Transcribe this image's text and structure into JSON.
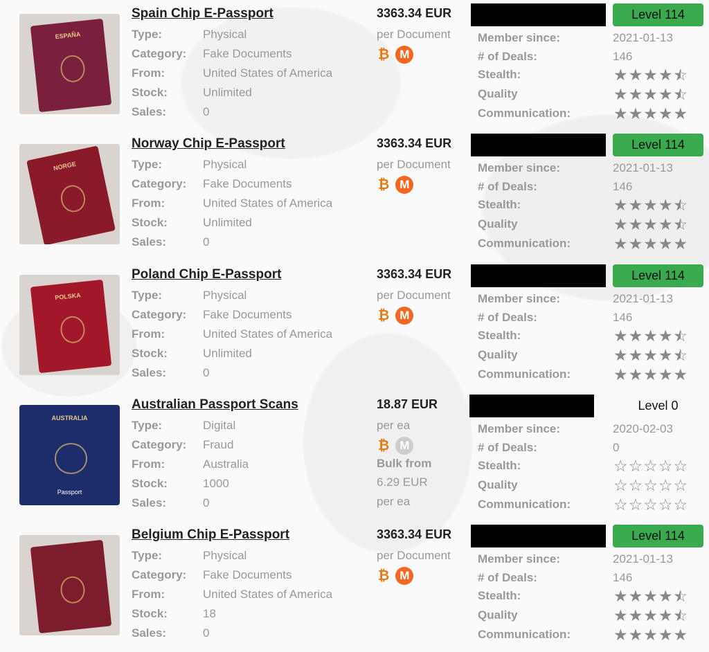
{
  "colors": {
    "level_badge": "#3aaa4f",
    "bitcoin": "#e87a16",
    "monero": "#f26822",
    "monero_disabled": "#cccccc",
    "redaction": "#000000"
  },
  "labels": {
    "type": "Type:",
    "category": "Category:",
    "from": "From:",
    "stock": "Stock:",
    "sales": "Sales:",
    "member_since": "Member since:",
    "deals": "# of Deals:",
    "stealth": "Stealth:",
    "quality": "Quality",
    "communication": "Communication:"
  },
  "listings": [
    {
      "title": "Spain Chip E-Passport",
      "type": "Physical",
      "category": "Fake Documents",
      "from": "United States of America",
      "stock": "Unlimited",
      "sales": "0",
      "price": "3363.34 EUR",
      "unit": "per Document",
      "monero_enabled": true,
      "level": "Level 114",
      "member_since": "2021-01-13",
      "deals": "146",
      "stealth": 4.5,
      "quality": 4.5,
      "communication": 5,
      "image": {
        "color": "#7a1f3d",
        "caption": "ESPAÑA"
      }
    },
    {
      "title": "Norway Chip E-Passport",
      "type": "Physical",
      "category": "Fake Documents",
      "from": "United States of America",
      "stock": "Unlimited",
      "sales": "0",
      "price": "3363.34 EUR",
      "unit": "per Document",
      "monero_enabled": true,
      "level": "Level 114",
      "member_since": "2021-01-13",
      "deals": "146",
      "stealth": 4.5,
      "quality": 4.5,
      "communication": 5,
      "image": {
        "color": "#8a1a2a",
        "caption": "NORGE"
      }
    },
    {
      "title": "Poland Chip E-Passport",
      "type": "Physical",
      "category": "Fake Documents",
      "from": "United States of America",
      "stock": "Unlimited",
      "sales": "0",
      "price": "3363.34 EUR",
      "unit": "per Document",
      "monero_enabled": true,
      "level": "Level 114",
      "member_since": "2021-01-13",
      "deals": "146",
      "stealth": 4.5,
      "quality": 4.5,
      "communication": 5,
      "image": {
        "color": "#a3172a",
        "caption": "POLSKA"
      }
    },
    {
      "title": "Australian Passport Scans",
      "type": "Digital",
      "category": "Fraud",
      "from": "Australia",
      "stock": "1000",
      "sales": "0",
      "price": "18.87 EUR",
      "unit": "per ea",
      "monero_enabled": false,
      "bulk_label": "Bulk from",
      "bulk_price": "6.29 EUR",
      "bulk_unit": "per ea",
      "level": "Level 0",
      "member_since": "2020-02-03",
      "deals": "0",
      "stealth": 0,
      "quality": 0,
      "communication": 0,
      "image": {
        "color": "#1d2d6b",
        "caption": "AUSTRALIA",
        "caption2": "Passport"
      }
    },
    {
      "title": "Belgium Chip E-Passport",
      "type": "Physical",
      "category": "Fake Documents",
      "from": "United States of America",
      "stock": "18",
      "sales": "0",
      "price": "3363.34 EUR",
      "unit": "per Document",
      "monero_enabled": true,
      "level": "Level 114",
      "member_since": "2021-01-13",
      "deals": "146",
      "stealth": 4.5,
      "quality": 4.5,
      "communication": 5,
      "image": {
        "color": "#7c1c2c",
        "caption": ""
      }
    }
  ]
}
